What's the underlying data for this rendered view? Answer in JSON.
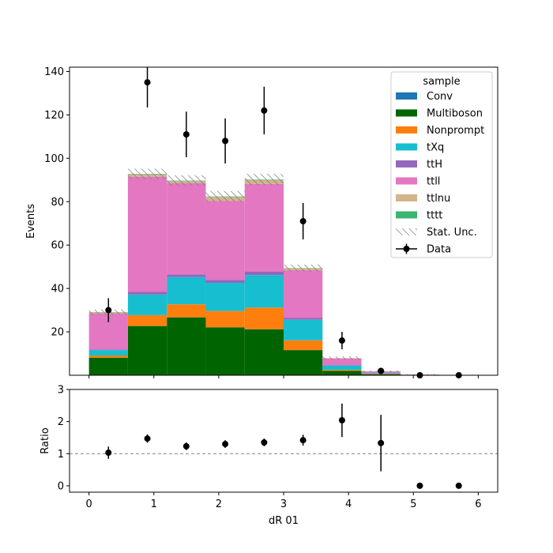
{
  "chart_data": [
    {
      "type": "bar",
      "subtype": "stacked-histogram",
      "ylabel": "Events",
      "ylim": [
        0,
        142
      ],
      "yticks": [
        20,
        40,
        60,
        80,
        100,
        120,
        140
      ],
      "xlim": [
        -0.3,
        6.3
      ],
      "bin_edges": [
        0,
        0.6,
        1.2,
        1.8,
        2.4,
        3.0,
        3.6,
        4.2,
        4.8,
        5.4,
        6.0
      ],
      "legend": {
        "title": "sample",
        "position": "top-right"
      },
      "series": [
        {
          "name": "Conv",
          "color": "#1f77b4",
          "values": [
            0.1,
            0.2,
            0.2,
            0.1,
            0.2,
            0.1,
            0.0,
            0.0,
            0.0,
            0.0
          ]
        },
        {
          "name": "Multiboson",
          "color": "#006400",
          "values": [
            8.0,
            22.5,
            26.5,
            22.0,
            21.0,
            11.5,
            2.0,
            0.5,
            0.1,
            0.0
          ]
        },
        {
          "name": "Nonprompt",
          "color": "#ff7f0e",
          "values": [
            1.0,
            5.0,
            6.0,
            7.5,
            10.0,
            4.5,
            0.5,
            0.2,
            0.0,
            0.0
          ]
        },
        {
          "name": "tXq",
          "color": "#17becf",
          "values": [
            2.5,
            9.5,
            12.5,
            13.0,
            15.0,
            9.5,
            2.0,
            0.3,
            0.0,
            0.0
          ]
        },
        {
          "name": "ttH",
          "color": "#9467bd",
          "values": [
            0.3,
            1.2,
            1.3,
            1.3,
            1.5,
            0.8,
            0.2,
            0.1,
            0.0,
            0.0
          ]
        },
        {
          "name": "ttll",
          "color": "#e377c2",
          "values": [
            16.5,
            53.0,
            42.0,
            36.5,
            40.5,
            22.0,
            3.0,
            0.7,
            0.2,
            0.0
          ]
        },
        {
          "name": "ttlnu",
          "color": "#d2b48c",
          "values": [
            0.6,
            1.2,
            1.0,
            1.8,
            1.8,
            0.9,
            0.2,
            0.0,
            0.0,
            0.0
          ]
        },
        {
          "name": "tttt",
          "color": "#3cb371",
          "values": [
            0.1,
            0.2,
            0.2,
            0.2,
            0.2,
            0.1,
            0.0,
            0.0,
            0.0,
            0.0
          ]
        }
      ],
      "stat_unc": {
        "name": "Stat. Unc.",
        "values": [
          1.2,
          2.4,
          2.5,
          2.5,
          2.6,
          1.6,
          0.8,
          0.4,
          0.2,
          0.1
        ]
      },
      "data": {
        "name": "Data",
        "x": [
          0.3,
          0.9,
          1.5,
          2.1,
          2.7,
          3.3,
          3.9,
          4.5,
          5.1,
          5.7
        ],
        "y": [
          30,
          135,
          111,
          108,
          122,
          71,
          16,
          2,
          0,
          0
        ],
        "yerr": [
          5.5,
          11.6,
          10.5,
          10.4,
          11.0,
          8.4,
          4.0,
          1.4,
          0,
          0
        ]
      }
    },
    {
      "type": "scatter",
      "xlabel": "dR 01",
      "ylabel": "Ratio",
      "xlim": [
        -0.3,
        6.3
      ],
      "ylim": [
        -0.2,
        3
      ],
      "xticks": [
        0,
        1,
        2,
        3,
        4,
        5,
        6
      ],
      "yticks": [
        0,
        1,
        2,
        3
      ],
      "reference_line": 1,
      "x": [
        0.3,
        0.9,
        1.5,
        2.1,
        2.7,
        3.3,
        3.9,
        4.5,
        5.1,
        5.7
      ],
      "y": [
        1.03,
        1.47,
        1.23,
        1.3,
        1.35,
        1.42,
        2.04,
        1.33,
        0,
        0
      ],
      "yerr": [
        0.19,
        0.13,
        0.12,
        0.12,
        0.12,
        0.17,
        0.52,
        0.88,
        0,
        0
      ]
    }
  ]
}
